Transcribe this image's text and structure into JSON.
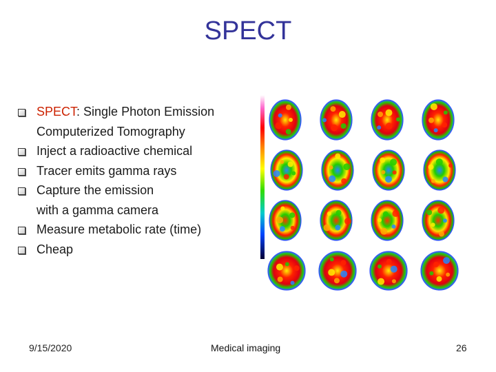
{
  "title": "SPECT",
  "bullets": [
    {
      "lines": [
        {
          "highlight": "SPECT",
          "text": ": Single Photon Emission"
        },
        {
          "highlight": "",
          "text": "Computerized Tomography"
        }
      ]
    },
    {
      "lines": [
        {
          "highlight": "",
          "text": "Inject a radioactive  chemical"
        }
      ]
    },
    {
      "lines": [
        {
          "highlight": "",
          "text": "Tracer emits gamma rays"
        }
      ]
    },
    {
      "lines": [
        {
          "highlight": "",
          "text": "Capture the emission"
        },
        {
          "highlight": "",
          "text": "with a gamma camera"
        }
      ]
    },
    {
      "lines": [
        {
          "highlight": "",
          "text": "Measure metabolic rate (time)"
        }
      ]
    },
    {
      "lines": [
        {
          "highlight": "",
          "text": "Cheap"
        }
      ]
    }
  ],
  "footer": {
    "date": "9/15/2020",
    "center": "Medical imaging",
    "page": "26"
  },
  "figure": {
    "rows": 4,
    "cols": 4
  },
  "colors": {
    "title": "#333399",
    "highlight": "#cc2200"
  }
}
